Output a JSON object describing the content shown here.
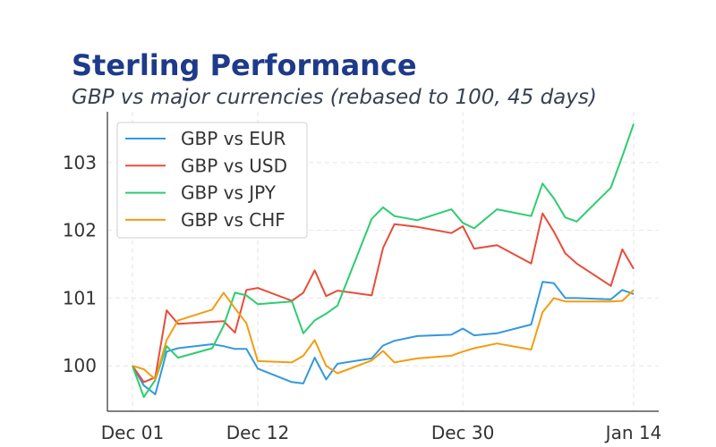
{
  "chart_data": {
    "type": "line",
    "title": "Sterling Performance",
    "subtitle": "GBP vs major currencies (rebased to 100, 45 days)",
    "xlabel": "",
    "ylabel": "",
    "x": [
      "Dec 01",
      "Dec 02",
      "Dec 03",
      "Dec 04",
      "Dec 05",
      "Dec 08",
      "Dec 09",
      "Dec 10",
      "Dec 11",
      "Dec 12",
      "Dec 15",
      "Dec 16",
      "Dec 17",
      "Dec 18",
      "Dec 19",
      "Dec 22",
      "Dec 23",
      "Dec 24",
      "Dec 26",
      "Dec 29",
      "Dec 30",
      "Dec 31",
      "Jan 02",
      "Jan 05",
      "Jan 06",
      "Jan 07",
      "Jan 08",
      "Jan 09",
      "Jan 12",
      "Jan 13",
      "Jan 14"
    ],
    "xticks": [
      "Dec 01",
      "Dec 12",
      "Dec 30",
      "Jan 14"
    ],
    "yticks": [
      100,
      101,
      102,
      103
    ],
    "ylim": [
      99.33,
      103.75
    ],
    "grid": true,
    "legend": "top-left",
    "series": [
      {
        "name": "GBP vs EUR",
        "color": "#3498db",
        "values": [
          100,
          99.71,
          99.58,
          100.21,
          100.26,
          100.32,
          100.29,
          100.25,
          100.25,
          99.96,
          99.76,
          99.74,
          100.12,
          99.8,
          100.03,
          100.11,
          100.3,
          100.37,
          100.44,
          100.46,
          100.55,
          100.45,
          100.48,
          100.61,
          101.24,
          101.22,
          101.0,
          101.0,
          100.98,
          101.12,
          101.06
        ]
      },
      {
        "name": "GBP vs USD",
        "color": "#e74c3c",
        "values": [
          100,
          99.76,
          99.83,
          100.82,
          100.62,
          100.65,
          100.66,
          100.49,
          101.12,
          101.15,
          100.96,
          101.08,
          101.41,
          101.03,
          101.11,
          101.04,
          101.74,
          102.09,
          102.05,
          101.96,
          102.06,
          101.73,
          101.78,
          101.51,
          102.25,
          101.98,
          101.66,
          101.51,
          101.18,
          101.72,
          101.43
        ]
      },
      {
        "name": "GBP vs JPY",
        "color": "#2ecc71",
        "values": [
          100,
          99.54,
          99.79,
          100.29,
          100.12,
          100.26,
          100.59,
          101.08,
          101.04,
          100.91,
          100.95,
          100.48,
          100.67,
          100.77,
          100.89,
          102.17,
          102.34,
          102.21,
          102.15,
          102.31,
          102.11,
          102.03,
          102.31,
          102.21,
          102.69,
          102.47,
          102.19,
          102.13,
          102.63,
          103.09,
          103.57
        ]
      },
      {
        "name": "GBP vs CHF",
        "color": "#f39c12",
        "values": [
          100,
          99.95,
          99.8,
          100.38,
          100.67,
          100.83,
          101.08,
          100.85,
          100.63,
          100.07,
          100.05,
          100.15,
          100.38,
          100.0,
          99.89,
          100.08,
          100.22,
          100.05,
          100.11,
          100.15,
          100.21,
          100.26,
          100.33,
          100.24,
          100.79,
          101.0,
          100.95,
          100.95,
          100.95,
          100.96,
          101.12
        ]
      }
    ]
  }
}
